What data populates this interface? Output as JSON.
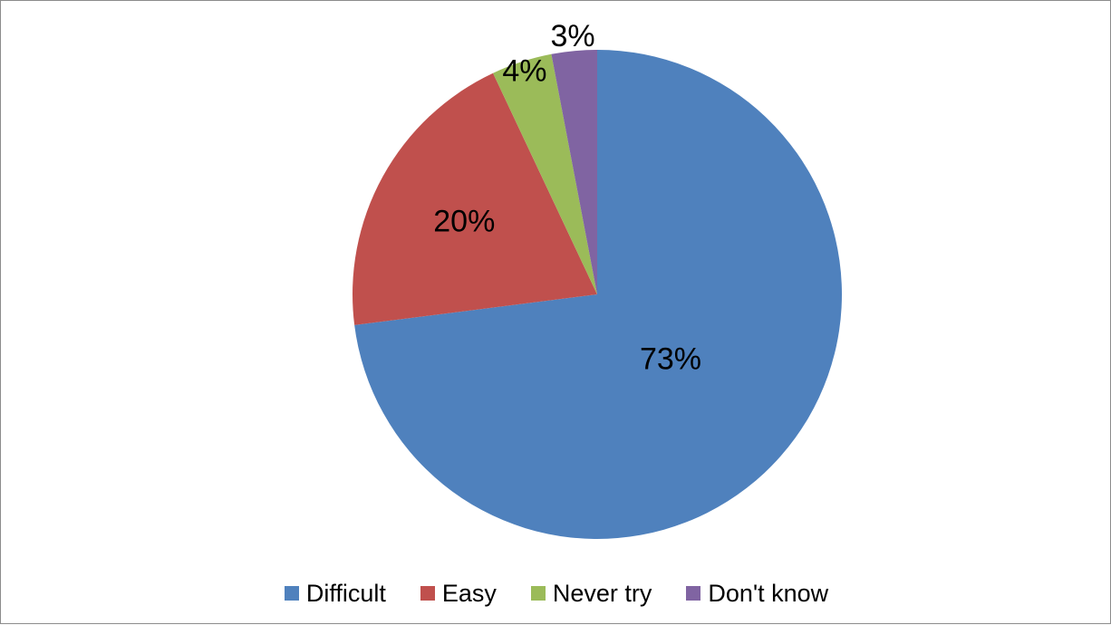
{
  "chart_data": {
    "type": "pie",
    "categories": [
      "Difficult",
      "Easy",
      "Never try",
      "Don't know"
    ],
    "values": [
      73,
      20,
      4,
      3
    ],
    "labels": [
      "73%",
      "20%",
      "4%",
      "3%"
    ],
    "colors": [
      "#4F81BD",
      "#C0504D",
      "#9BBB59",
      "#8064A2"
    ],
    "title": "",
    "legend_position": "bottom",
    "start_angle": "12 o'clock, clockwise"
  }
}
